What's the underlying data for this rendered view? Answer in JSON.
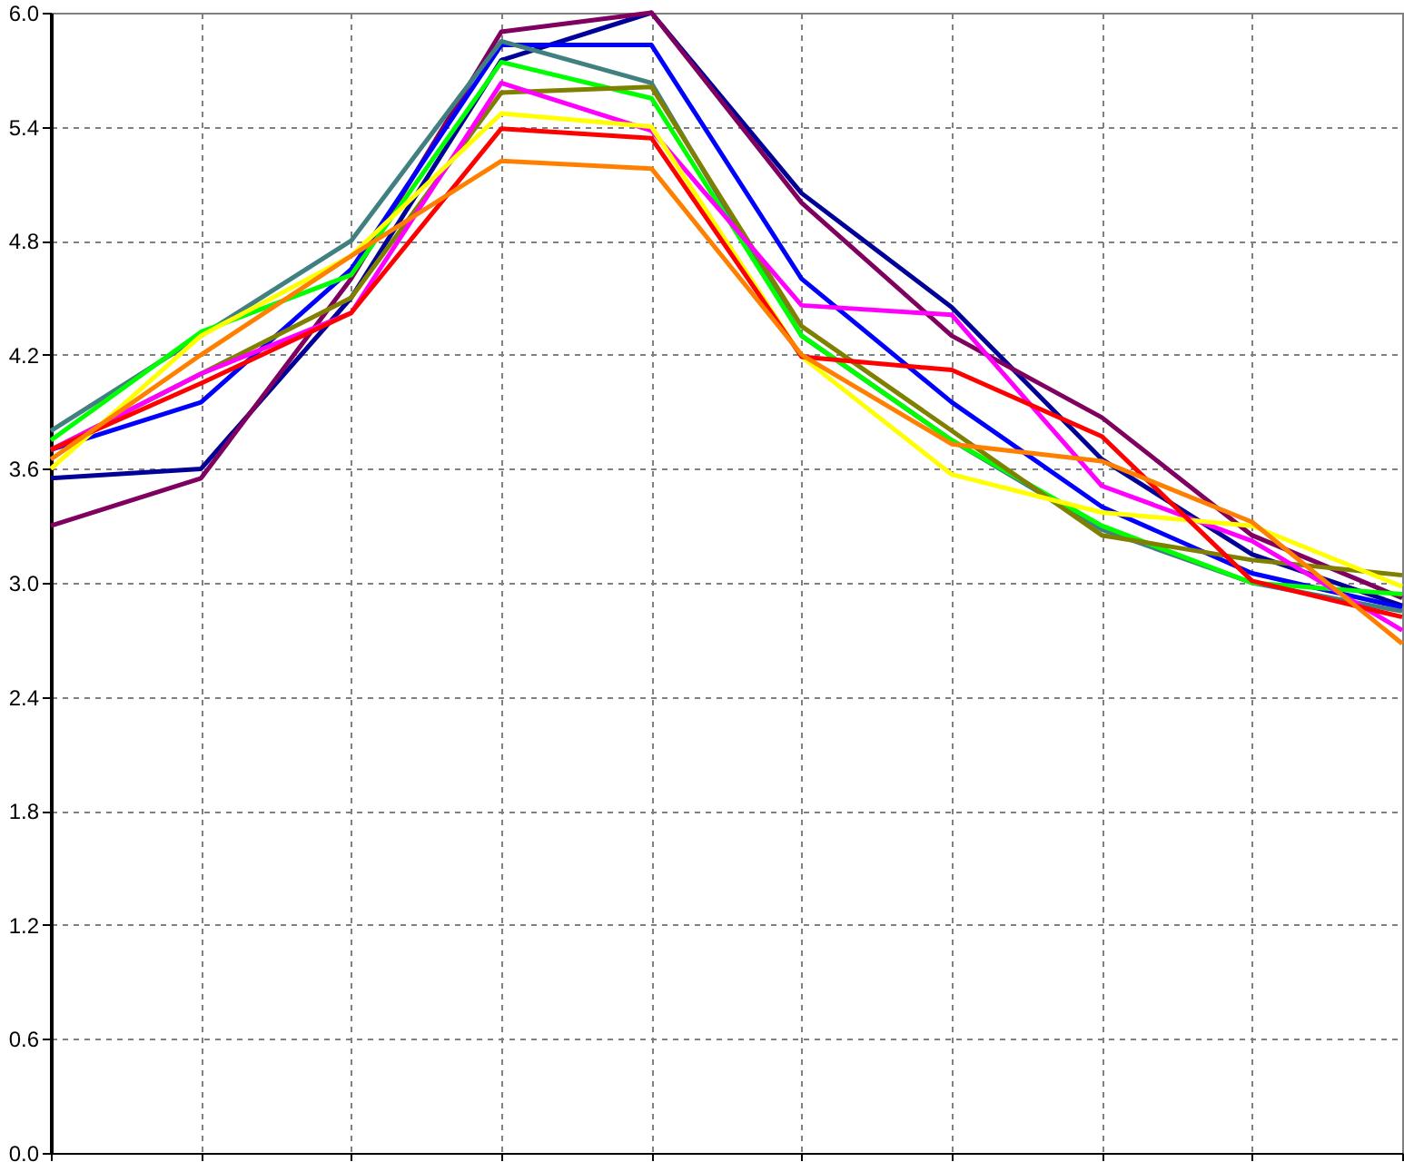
{
  "chart_data": {
    "type": "line",
    "categories": [
      null,
      null,
      null,
      null,
      null,
      null,
      null,
      null,
      null,
      null
    ],
    "series": [
      {
        "color": "#000099",
        "values": [
          3.55,
          3.6,
          4.5,
          5.75,
          6.0,
          5.05,
          4.45,
          3.65,
          3.15,
          2.88
        ]
      },
      {
        "color": "#800060",
        "values": [
          3.3,
          3.55,
          4.6,
          5.9,
          6.0,
          5.0,
          4.3,
          3.87,
          3.25,
          2.92
        ]
      },
      {
        "color": "#0000ff",
        "values": [
          3.7,
          3.95,
          4.65,
          5.83,
          5.83,
          4.6,
          3.95,
          3.4,
          3.05,
          2.87
        ]
      },
      {
        "color": "#408080",
        "values": [
          3.8,
          4.3,
          4.8,
          5.85,
          5.63,
          4.3,
          3.75,
          3.28,
          3.0,
          2.85
        ]
      },
      {
        "color": "#00ff00",
        "values": [
          3.75,
          4.32,
          4.62,
          5.74,
          5.55,
          4.3,
          3.75,
          3.3,
          3.0,
          2.94
        ]
      },
      {
        "color": "#808000",
        "values": [
          3.7,
          4.1,
          4.5,
          5.58,
          5.61,
          4.35,
          3.8,
          3.25,
          3.12,
          3.04
        ]
      },
      {
        "color": "#ff00ff",
        "values": [
          3.7,
          4.1,
          4.42,
          5.63,
          5.38,
          4.46,
          4.41,
          3.51,
          3.22,
          2.75
        ]
      },
      {
        "color": "#ffff00",
        "values": [
          3.6,
          4.3,
          4.72,
          5.47,
          5.4,
          4.19,
          3.57,
          3.37,
          3.3,
          2.98
        ]
      },
      {
        "color": "#ff0000",
        "values": [
          3.7,
          4.05,
          4.42,
          5.39,
          5.34,
          4.19,
          4.12,
          3.77,
          3.01,
          2.82
        ]
      },
      {
        "color": "#ff8000",
        "values": [
          3.65,
          4.2,
          4.72,
          5.22,
          5.18,
          4.2,
          3.73,
          3.64,
          3.32,
          2.68
        ]
      }
    ],
    "ylim": [
      0,
      6.0
    ],
    "yticks": [
      {
        "value": 0,
        "label": "0.0"
      },
      0.6,
      1.2,
      1.8,
      2.4,
      {
        "value": 3,
        "label": "3.0"
      },
      3.6,
      4.2,
      4.8,
      5.4,
      {
        "value": 6,
        "label": "6.0"
      }
    ],
    "grid": true,
    "line_style": "solid",
    "marker": "none"
  }
}
